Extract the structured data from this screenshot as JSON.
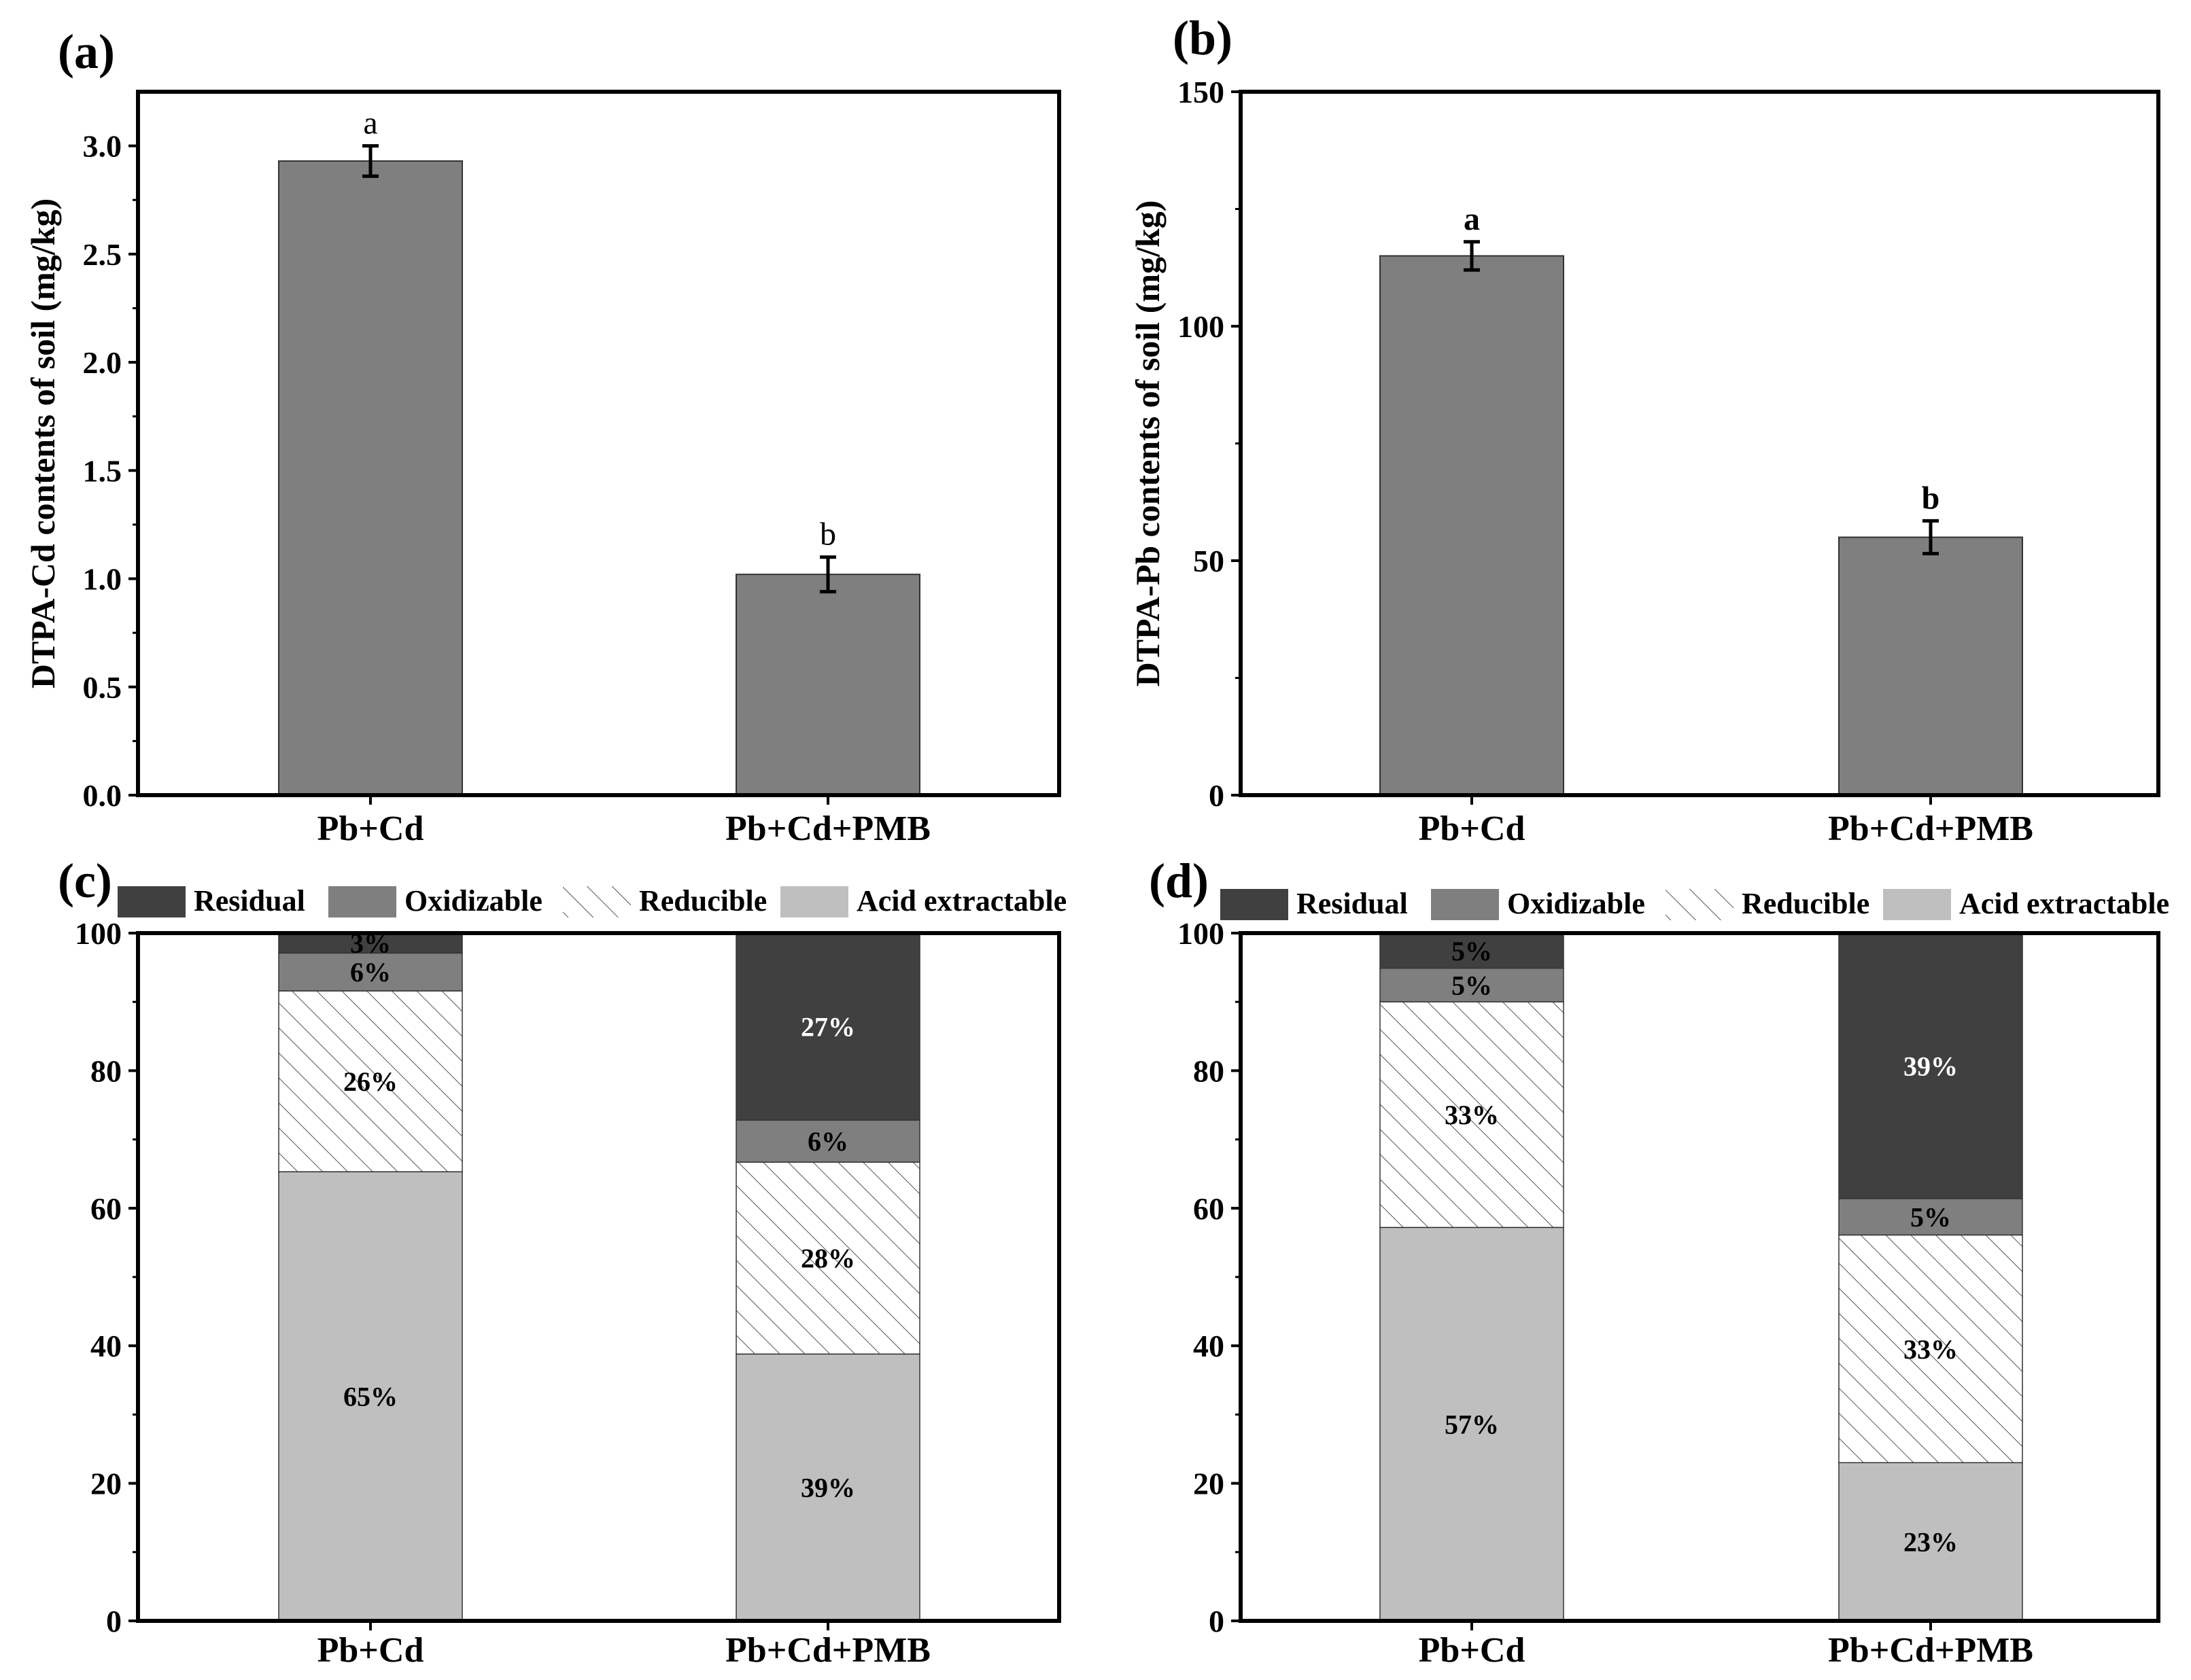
{
  "chart_data": [
    {
      "panel": "(a)",
      "type": "bar",
      "ylabel": "DTPA-Cd contents of soil (mg/kg)",
      "ylim": [
        0,
        3.25
      ],
      "yticks": [
        "0.0",
        "0.5",
        "1.0",
        "1.5",
        "2.0",
        "2.5",
        "3.0"
      ],
      "categories": [
        "Pb+Cd",
        "Pb+Cd+PMB"
      ],
      "values": [
        2.93,
        1.02
      ],
      "errors": [
        0.07,
        0.08
      ],
      "significance": [
        "a",
        "b"
      ],
      "bar_color": "#7f7f7f"
    },
    {
      "panel": "(b)",
      "type": "bar",
      "ylabel": "DTPA-Pb contents of soil (mg/kg)",
      "ylim": [
        0,
        150
      ],
      "yticks": [
        "0",
        "50",
        "100",
        "150"
      ],
      "categories": [
        "Pb+Cd",
        "Pb+Cd+PMB"
      ],
      "values": [
        115,
        55
      ],
      "errors": [
        3,
        3.5
      ],
      "significance": [
        "a",
        "b"
      ],
      "bar_color": "#7f7f7f"
    },
    {
      "panel": "(c)",
      "type": "bar",
      "stacked": true,
      "ylim": [
        0,
        100
      ],
      "yticks": [
        "0",
        "20",
        "40",
        "60",
        "80",
        "100"
      ],
      "categories": [
        "Pb+Cd",
        "Pb+Cd+PMB"
      ],
      "legend": [
        "Residual",
        "Oxidizable",
        "Reducible",
        "Acid extractable"
      ],
      "series": [
        {
          "name": "Acid extractable",
          "values": [
            65.3,
            38.8
          ],
          "labels": [
            "65%",
            "39%"
          ]
        },
        {
          "name": "Reducible",
          "values": [
            26.3,
            27.9
          ],
          "labels": [
            "26%",
            "28%"
          ]
        },
        {
          "name": "Oxidizable",
          "values": [
            5.5,
            6.1
          ],
          "labels": [
            "6%",
            "6%"
          ]
        },
        {
          "name": "Residual",
          "values": [
            2.9,
            27.2
          ],
          "labels": [
            "3%",
            "27%"
          ]
        }
      ]
    },
    {
      "panel": "(d)",
      "type": "bar",
      "stacked": true,
      "ylim": [
        0,
        100
      ],
      "yticks": [
        "0",
        "20",
        "40",
        "60",
        "80",
        "100"
      ],
      "categories": [
        "Pb+Cd",
        "Pb+Cd+PMB"
      ],
      "legend": [
        "Residual",
        "Oxidizable",
        "Reducible",
        "Acid extractable"
      ],
      "series": [
        {
          "name": "Acid extractable",
          "values": [
            57.2,
            23.0
          ],
          "labels": [
            "57%",
            "23%"
          ]
        },
        {
          "name": "Reducible",
          "values": [
            32.8,
            33.1
          ],
          "labels": [
            "33%",
            "33%"
          ]
        },
        {
          "name": "Oxidizable",
          "values": [
            4.9,
            5.3
          ],
          "labels": [
            "5%",
            "5%"
          ]
        },
        {
          "name": "Residual",
          "values": [
            5.1,
            38.6
          ],
          "labels": [
            "5%",
            "39%"
          ]
        }
      ]
    }
  ],
  "colors": {
    "Residual": "#404040",
    "Oxidizable": "#7f7f7f",
    "Reducible": "#ffffff",
    "Acid extractable": "#bfbfbf",
    "axis": "#000000"
  }
}
